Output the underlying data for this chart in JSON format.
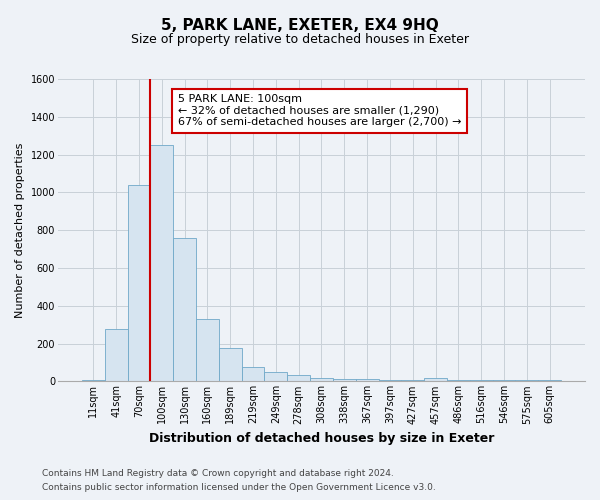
{
  "title": "5, PARK LANE, EXETER, EX4 9HQ",
  "subtitle": "Size of property relative to detached houses in Exeter",
  "xlabel": "Distribution of detached houses by size in Exeter",
  "ylabel": "Number of detached properties",
  "footnote1": "Contains HM Land Registry data © Crown copyright and database right 2024.",
  "footnote2": "Contains public sector information licensed under the Open Government Licence v3.0.",
  "bar_labels": [
    "11sqm",
    "41sqm",
    "70sqm",
    "100sqm",
    "130sqm",
    "160sqm",
    "189sqm",
    "219sqm",
    "249sqm",
    "278sqm",
    "308sqm",
    "338sqm",
    "367sqm",
    "397sqm",
    "427sqm",
    "457sqm",
    "486sqm",
    "516sqm",
    "546sqm",
    "575sqm",
    "605sqm"
  ],
  "bar_values": [
    5,
    275,
    1040,
    1250,
    760,
    330,
    175,
    75,
    50,
    35,
    20,
    10,
    10,
    5,
    5,
    20,
    5,
    5,
    5,
    5,
    5
  ],
  "vline_index": 3,
  "vline_color": "#cc0000",
  "bar_fill": "#d6e4f0",
  "bar_edge": "#6fa8c8",
  "annotation_text": "5 PARK LANE: 100sqm\n← 32% of detached houses are smaller (1,290)\n67% of semi-detached houses are larger (2,700) →",
  "annotation_box_facecolor": "white",
  "annotation_box_edgecolor": "#cc0000",
  "ylim": [
    0,
    1600
  ],
  "yticks": [
    0,
    200,
    400,
    600,
    800,
    1000,
    1200,
    1400,
    1600
  ],
  "grid_color": "#c8d0d8",
  "bg_color": "#eef2f7",
  "plot_bg_color": "#eef2f7",
  "title_fontsize": 11,
  "subtitle_fontsize": 9,
  "xlabel_fontsize": 9,
  "ylabel_fontsize": 8,
  "tick_fontsize": 7,
  "footnote_fontsize": 6.5,
  "annotation_fontsize": 8
}
